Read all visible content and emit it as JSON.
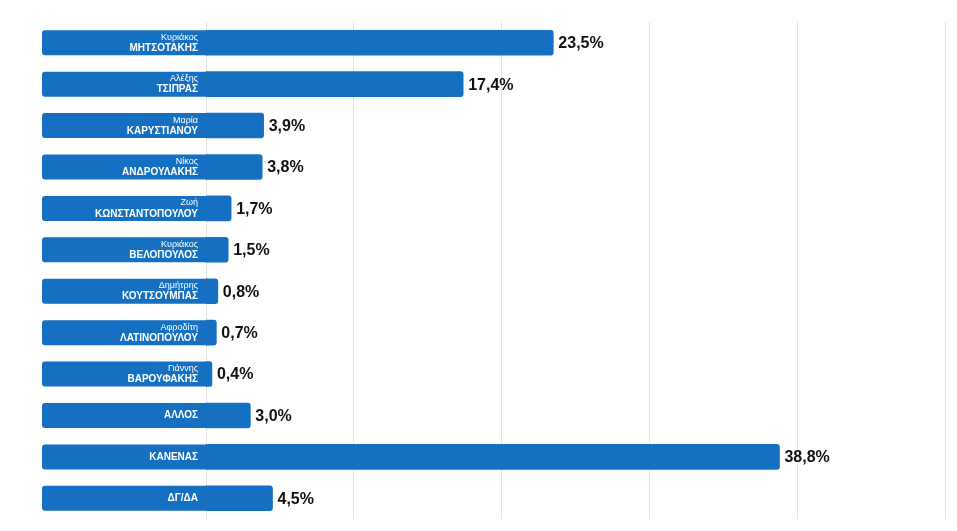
{
  "chart_data": {
    "type": "bar",
    "orientation": "horizontal",
    "categories": [
      "Κυριάκος\nΜΗΤΣΟΤΑΚΗΣ",
      "Αλέξης\nΤΣΙΠΡΑΣ",
      "Μαρία\nΚΑΡΥΣΤΙΑΝΟΥ",
      "Νίκος\nΑΝΔΡΟΥΛΑΚΗΣ",
      "Ζωή\nΚΩΝΣΤΑΝΤΟΠΟΥΛΟΥ",
      "Κυριάκος\nΒΕΛΟΠΟΥΛΟΣ",
      "Δημήτρης\nΚΟΥΤΣΟΥΜΠΑΣ",
      "Αφροδίτη\nΛΑΤΙΝΟΠΟΥΛΟΥ",
      "Γιάννης\nΒΑΡΟΥΦΑΚΗΣ",
      "ΑΛΛΟΣ",
      "ΚΑΝΕΝΑΣ",
      "ΔΓ/ΔΑ"
    ],
    "values": [
      23.5,
      17.4,
      3.9,
      3.8,
      1.7,
      1.5,
      0.8,
      0.7,
      0.4,
      3.0,
      38.8,
      4.5
    ],
    "value_labels": [
      "23,5%",
      "17,4%",
      "3,9%",
      "3,8%",
      "1,7%",
      "1,5%",
      "0,8%",
      "0,7%",
      "0,4%",
      "3,0%",
      "38,8%",
      "4,5%"
    ],
    "color": "#1670c2",
    "xlim": [
      0,
      50
    ],
    "xticks": [
      0,
      10,
      20,
      30,
      40,
      50
    ],
    "grid": true,
    "data_labels": true,
    "tick_labels": "y"
  }
}
